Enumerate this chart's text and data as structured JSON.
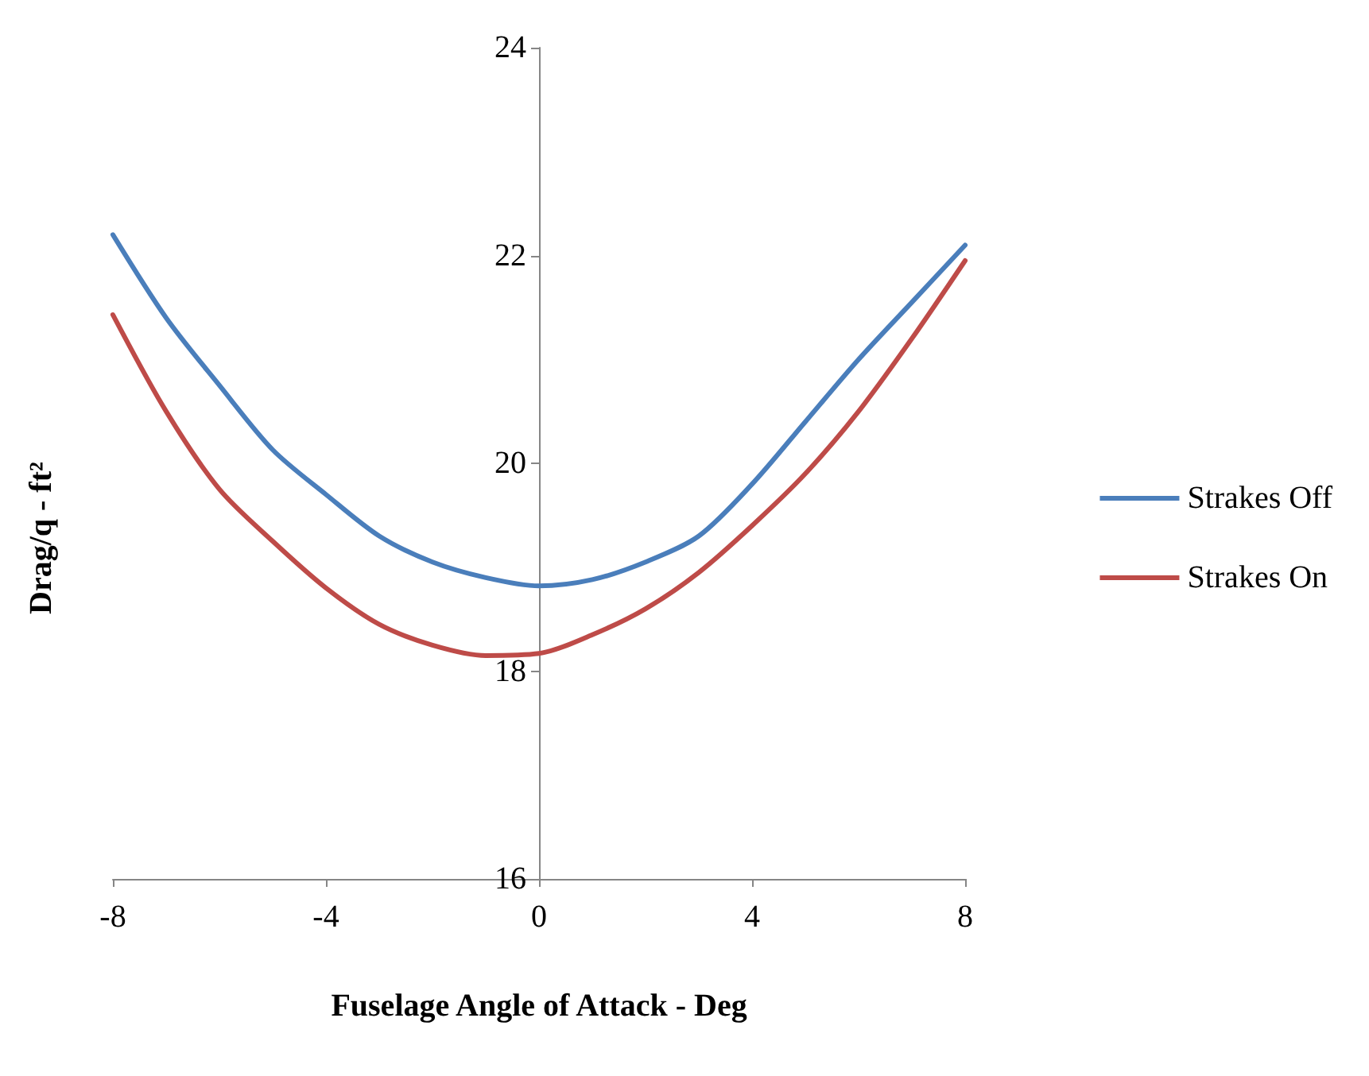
{
  "chart_data": {
    "type": "line",
    "xlabel": "Fuselage Angle of Attack - Deg",
    "ylabel": "Drag/q - ft²",
    "x": [
      -8,
      -7,
      -6,
      -5,
      -4,
      -3,
      -2,
      -1,
      0,
      1,
      2,
      3,
      4,
      5,
      6,
      7,
      8
    ],
    "series": [
      {
        "name": "Strakes Off",
        "color": "#4a7ebb",
        "values": [
          22.2,
          21.4,
          20.75,
          20.13,
          19.7,
          19.3,
          19.05,
          18.9,
          18.82,
          18.88,
          19.05,
          19.3,
          19.8,
          20.4,
          21.0,
          21.55,
          22.1
        ]
      },
      {
        "name": "Strakes On",
        "color": "#be4b48",
        "values": [
          21.43,
          20.5,
          19.75,
          19.25,
          18.8,
          18.45,
          18.25,
          18.15,
          18.17,
          18.35,
          18.6,
          18.95,
          19.4,
          19.9,
          20.5,
          21.2,
          21.95
        ]
      }
    ],
    "xlim": [
      -8,
      8
    ],
    "xticks": [
      -8,
      -4,
      0,
      4,
      8
    ],
    "ylim": [
      16,
      24
    ],
    "yticks": [
      16,
      18,
      20,
      22,
      24
    ],
    "legend": "right",
    "marker": "none",
    "line_style": "solid",
    "grid": false
  }
}
